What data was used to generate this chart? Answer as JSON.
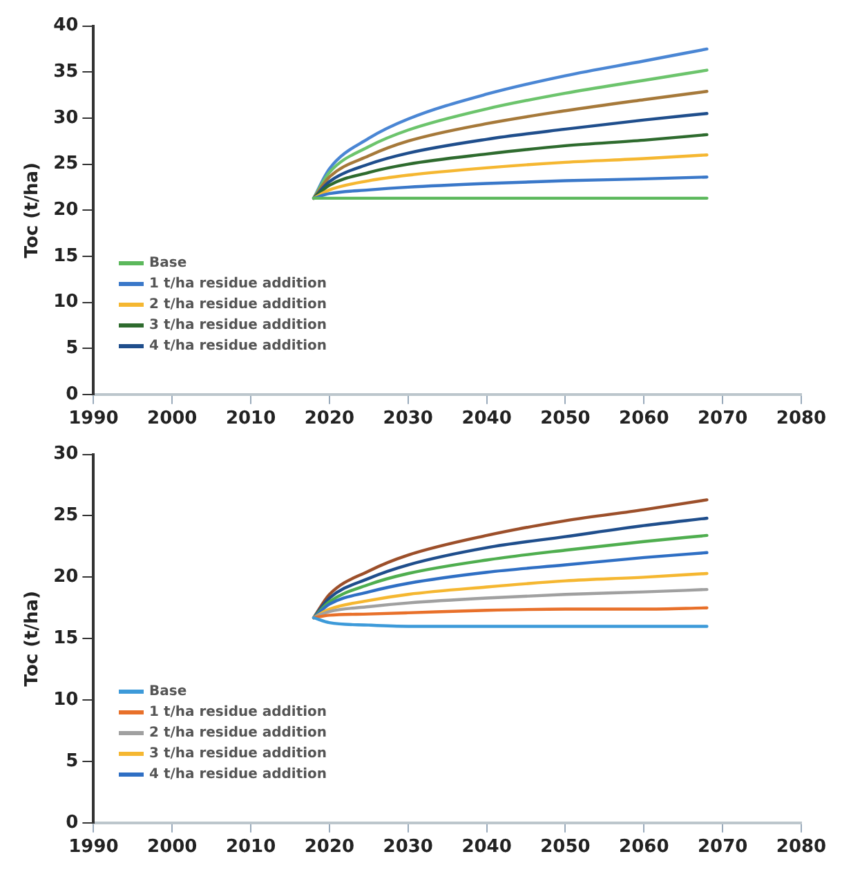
{
  "chart_data": [
    {
      "type": "line",
      "ylabel": "Toc (t/ha)",
      "x": [
        2018,
        2020,
        2025,
        2030,
        2040,
        2050,
        2060,
        2068
      ],
      "xlim": [
        1990,
        2080
      ],
      "xticks": [
        1990,
        2000,
        2010,
        2020,
        2030,
        2040,
        2050,
        2060,
        2070,
        2080
      ],
      "ylim": [
        0,
        40
      ],
      "yticks": [
        0,
        5,
        10,
        15,
        20,
        25,
        30,
        35,
        40
      ],
      "legend": "bottom left",
      "marker": "none",
      "line_style": "solid",
      "series": [
        {
          "name": "Base",
          "color": "#5cb85c",
          "values": [
            21.3,
            21.3,
            21.3,
            21.3,
            21.3,
            21.3,
            21.3,
            21.3
          ]
        },
        {
          "name": "1 t/ha residue addition",
          "color": "#3a78c9",
          "values": [
            21.3,
            21.8,
            22.2,
            22.5,
            22.9,
            23.2,
            23.4,
            23.6
          ]
        },
        {
          "name": "2 t/ha residue addition",
          "color": "#f5b731",
          "values": [
            21.3,
            22.2,
            23.2,
            23.8,
            24.6,
            25.2,
            25.6,
            26.0
          ]
        },
        {
          "name": "3 t/ha residue addition",
          "color": "#2e6b2e",
          "values": [
            21.3,
            22.7,
            24.1,
            25.0,
            26.1,
            27.0,
            27.6,
            28.2
          ]
        },
        {
          "name": "4 t/ha residue addition",
          "color": "#1f4e8c",
          "values": [
            21.3,
            23.1,
            25.0,
            26.2,
            27.7,
            28.8,
            29.8,
            30.5
          ]
        },
        {
          "color": "#a6793a",
          "values": [
            21.3,
            23.6,
            25.9,
            27.5,
            29.4,
            30.8,
            32.0,
            32.9
          ]
        },
        {
          "color": "#6cc46c",
          "values": [
            21.3,
            24.1,
            26.9,
            28.7,
            31.0,
            32.7,
            34.1,
            35.2
          ]
        },
        {
          "color": "#4a86d4",
          "values": [
            21.3,
            24.5,
            27.8,
            29.9,
            32.6,
            34.6,
            36.2,
            37.5
          ]
        }
      ]
    },
    {
      "type": "line",
      "ylabel": "Toc (t/ha)",
      "x": [
        2018,
        2020,
        2025,
        2030,
        2040,
        2050,
        2060,
        2068
      ],
      "xlim": [
        1990,
        2080
      ],
      "xticks": [
        1990,
        2000,
        2010,
        2020,
        2030,
        2040,
        2050,
        2060,
        2070,
        2080
      ],
      "ylim": [
        0,
        30
      ],
      "yticks": [
        0,
        5,
        10,
        15,
        20,
        25,
        30
      ],
      "legend": "bottom left",
      "marker": "none",
      "line_style": "solid",
      "series": [
        {
          "name": "Base",
          "color": "#3d9ad9",
          "values": [
            16.7,
            16.3,
            16.1,
            16.0,
            16.0,
            16.0,
            16.0,
            16.0
          ]
        },
        {
          "name": "1 t/ha residue addition",
          "color": "#e8702a",
          "values": [
            16.7,
            16.9,
            17.0,
            17.1,
            17.3,
            17.4,
            17.4,
            17.5
          ]
        },
        {
          "name": "2 t/ha residue addition",
          "color": "#a0a0a0",
          "values": [
            16.7,
            17.2,
            17.6,
            17.9,
            18.3,
            18.6,
            18.8,
            19.0
          ]
        },
        {
          "name": "3 t/ha residue addition",
          "color": "#f5b731",
          "values": [
            16.7,
            17.4,
            18.1,
            18.6,
            19.2,
            19.7,
            20.0,
            20.3
          ]
        },
        {
          "name": "4 t/ha residue addition",
          "color": "#2f6fc4",
          "values": [
            16.7,
            17.8,
            18.8,
            19.5,
            20.4,
            21.0,
            21.6,
            22.0
          ]
        },
        {
          "color": "#4fae4f",
          "values": [
            16.7,
            18.0,
            19.4,
            20.3,
            21.4,
            22.2,
            22.9,
            23.4
          ]
        },
        {
          "color": "#1f4e8c",
          "values": [
            16.7,
            18.3,
            19.9,
            21.0,
            22.4,
            23.3,
            24.2,
            24.8
          ]
        },
        {
          "color": "#9c4f2a",
          "values": [
            16.7,
            18.6,
            20.5,
            21.8,
            23.4,
            24.6,
            25.5,
            26.3
          ]
        }
      ]
    }
  ]
}
